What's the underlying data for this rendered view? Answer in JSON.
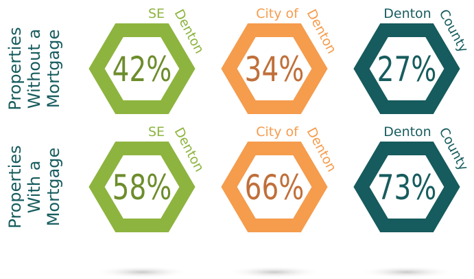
{
  "rows": [
    {
      "label": [
        "Properties",
        "Without a",
        "Mortgage"
      ],
      "items": [
        {
          "top": "SE",
          "side": "Denton",
          "value": "42%"
        },
        {
          "top": "City of",
          "side": "Denton",
          "value": "34%"
        },
        {
          "top": "Denton",
          "side": "County",
          "value": "27%"
        }
      ]
    },
    {
      "label": [
        "Properties",
        "With a",
        "Mortgage"
      ],
      "items": [
        {
          "top": "SE",
          "side": "Denton",
          "value": "58%"
        },
        {
          "top": "City of",
          "side": "Denton",
          "value": "66%"
        },
        {
          "top": "Denton",
          "side": "County",
          "value": "73%"
        }
      ]
    }
  ]
}
